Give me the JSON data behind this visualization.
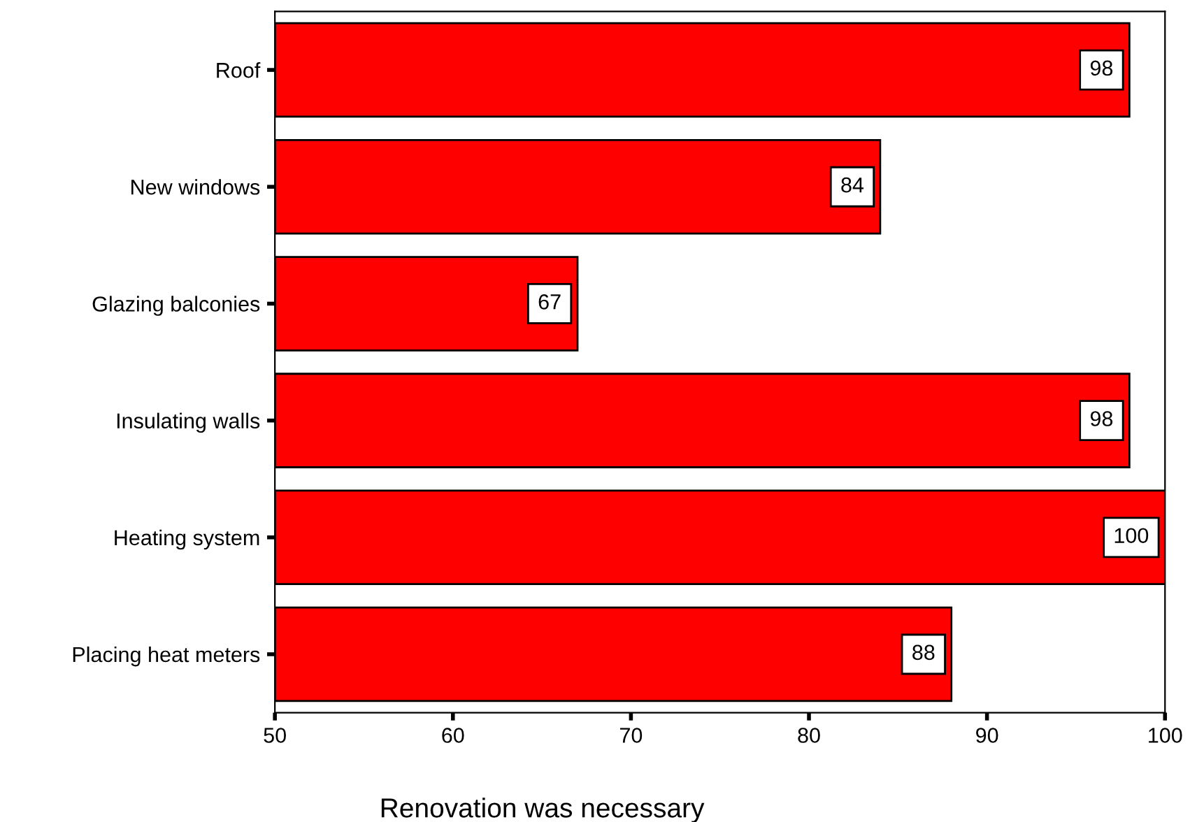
{
  "chart_data": {
    "type": "bar",
    "orientation": "horizontal",
    "xlabel": "Renovation was necessary",
    "categories": [
      "Roof",
      "New windows",
      "Glazing balconies",
      "Insulating walls",
      "Heating system",
      "Placing heat meters"
    ],
    "values": [
      98,
      84,
      67,
      98,
      100,
      88
    ],
    "color": "#ff0000",
    "data_labels": true,
    "xlim": [
      50,
      100
    ],
    "xticks": [
      50,
      60,
      70,
      80,
      90,
      100
    ],
    "grid": false,
    "legend": false
  }
}
